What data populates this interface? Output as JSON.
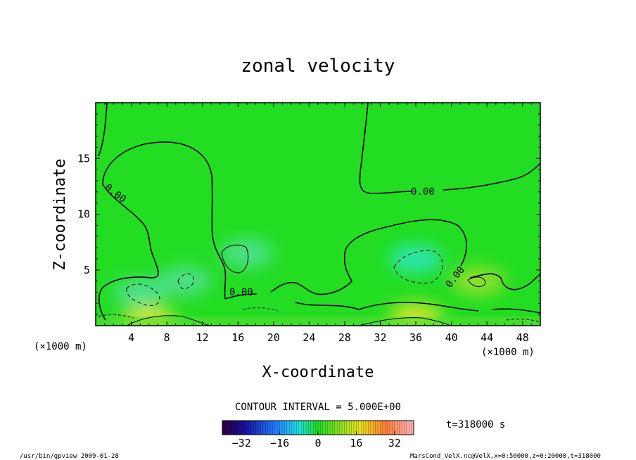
{
  "chart_data": {
    "type": "heatmap",
    "title": "zonal velocity",
    "xlabel": "X-coordinate",
    "ylabel": "Z-coordinate",
    "x_unit": "(×1000 m)",
    "y_unit": "(×1000 m)",
    "xlim": [
      0,
      50
    ],
    "ylim": [
      0,
      20
    ],
    "x_ticks": [
      4,
      8,
      12,
      16,
      20,
      24,
      28,
      32,
      36,
      40,
      44,
      48
    ],
    "y_ticks": [
      5,
      10,
      15
    ],
    "contour_interval_text": "CONTOUR INTERVAL = 5.000E+00",
    "contour_labels": [
      "0.00",
      "0.00",
      "0.00",
      "0.00"
    ],
    "colorbar": {
      "range": [
        -40,
        40
      ],
      "ticks": [
        -32,
        -16,
        0,
        16,
        32
      ]
    },
    "time_text": "t=318000 s",
    "features": [
      {
        "x": 17,
        "z": 6.5,
        "u": -5
      },
      {
        "x": 36,
        "z": 6,
        "u": -9
      },
      {
        "x": 5,
        "z": 3,
        "u": -6
      },
      {
        "x": 10,
        "z": 4,
        "u": -5
      },
      {
        "x": 36,
        "z": 0.8,
        "u": 9
      },
      {
        "x": 6,
        "z": 0.5,
        "u": 8
      },
      {
        "x": 43,
        "z": 4,
        "u": 4
      }
    ]
  },
  "footer": {
    "left": "/usr/bin/gpview  2009-01-28",
    "right": "MarsCond_VelX.nc@VelX,x=0:50000,z=0:20000,t=318000"
  },
  "colors": {
    "background_field": "#22dd22",
    "line": "#000000"
  }
}
